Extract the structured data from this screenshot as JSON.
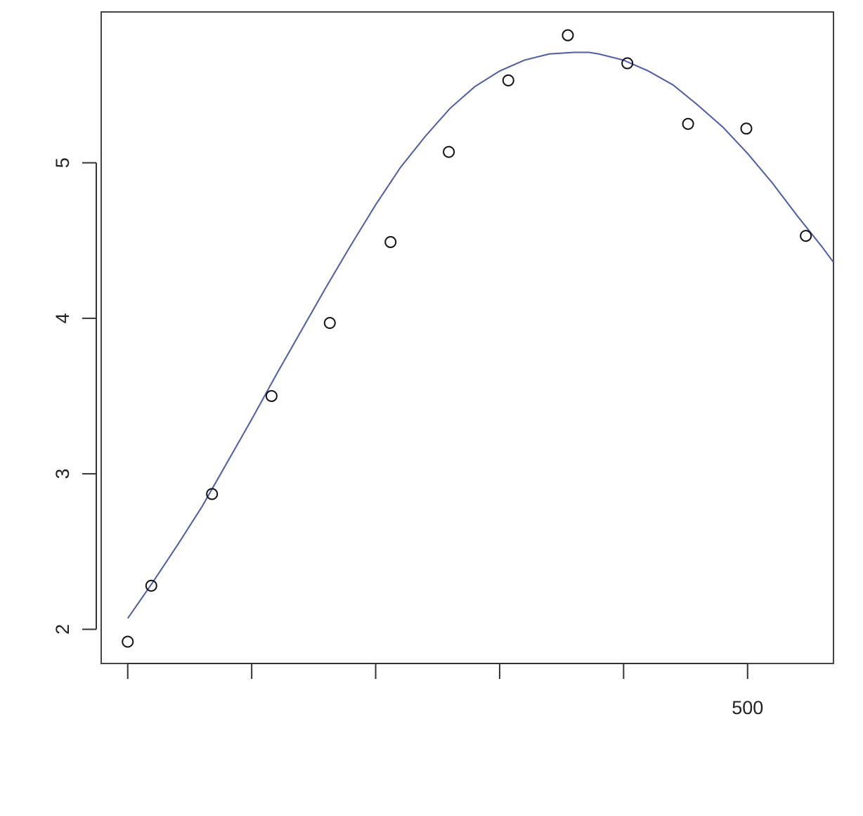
{
  "chart_data": {
    "type": "scatter",
    "title": "",
    "xlabel": "",
    "ylabel": "",
    "xlim": [
      -21.4,
      569.3
    ],
    "ylim": [
      1.78,
      5.97
    ],
    "x_ticks": [
      {
        "value": 0,
        "label": ""
      },
      {
        "value": 100,
        "label": ""
      },
      {
        "value": 200,
        "label": ""
      },
      {
        "value": 300,
        "label": ""
      },
      {
        "value": 400,
        "label": ""
      },
      {
        "value": 500,
        "label": "500"
      }
    ],
    "y_ticks": [
      {
        "value": 2,
        "label": "2"
      },
      {
        "value": 3,
        "label": "3"
      },
      {
        "value": 4,
        "label": "4"
      },
      {
        "value": 5,
        "label": "5"
      }
    ],
    "grid": false,
    "legend": "none",
    "points": {
      "x": [
        0,
        19,
        68,
        116,
        163,
        212,
        259,
        307,
        355,
        403,
        452,
        499,
        547
      ],
      "y": [
        1.92,
        2.28,
        2.87,
        3.5,
        3.97,
        4.49,
        5.07,
        5.53,
        5.82,
        5.64,
        5.25,
        5.22,
        4.53
      ]
    },
    "fit_curve": {
      "color": "#4a5bb0",
      "x": [
        0,
        20,
        40,
        60,
        80,
        100,
        120,
        140,
        160,
        180,
        200,
        220,
        240,
        260,
        280,
        300,
        320,
        340,
        360,
        372,
        380,
        400,
        420,
        440,
        460,
        480,
        500,
        520,
        540,
        560,
        569.3
      ],
      "y": [
        2.07,
        2.3,
        2.54,
        2.79,
        3.07,
        3.35,
        3.64,
        3.92,
        4.2,
        4.47,
        4.73,
        4.97,
        5.17,
        5.35,
        5.49,
        5.59,
        5.66,
        5.7,
        5.71,
        5.71,
        5.7,
        5.66,
        5.59,
        5.5,
        5.37,
        5.23,
        5.06,
        4.87,
        4.66,
        4.46,
        4.36
      ]
    }
  }
}
